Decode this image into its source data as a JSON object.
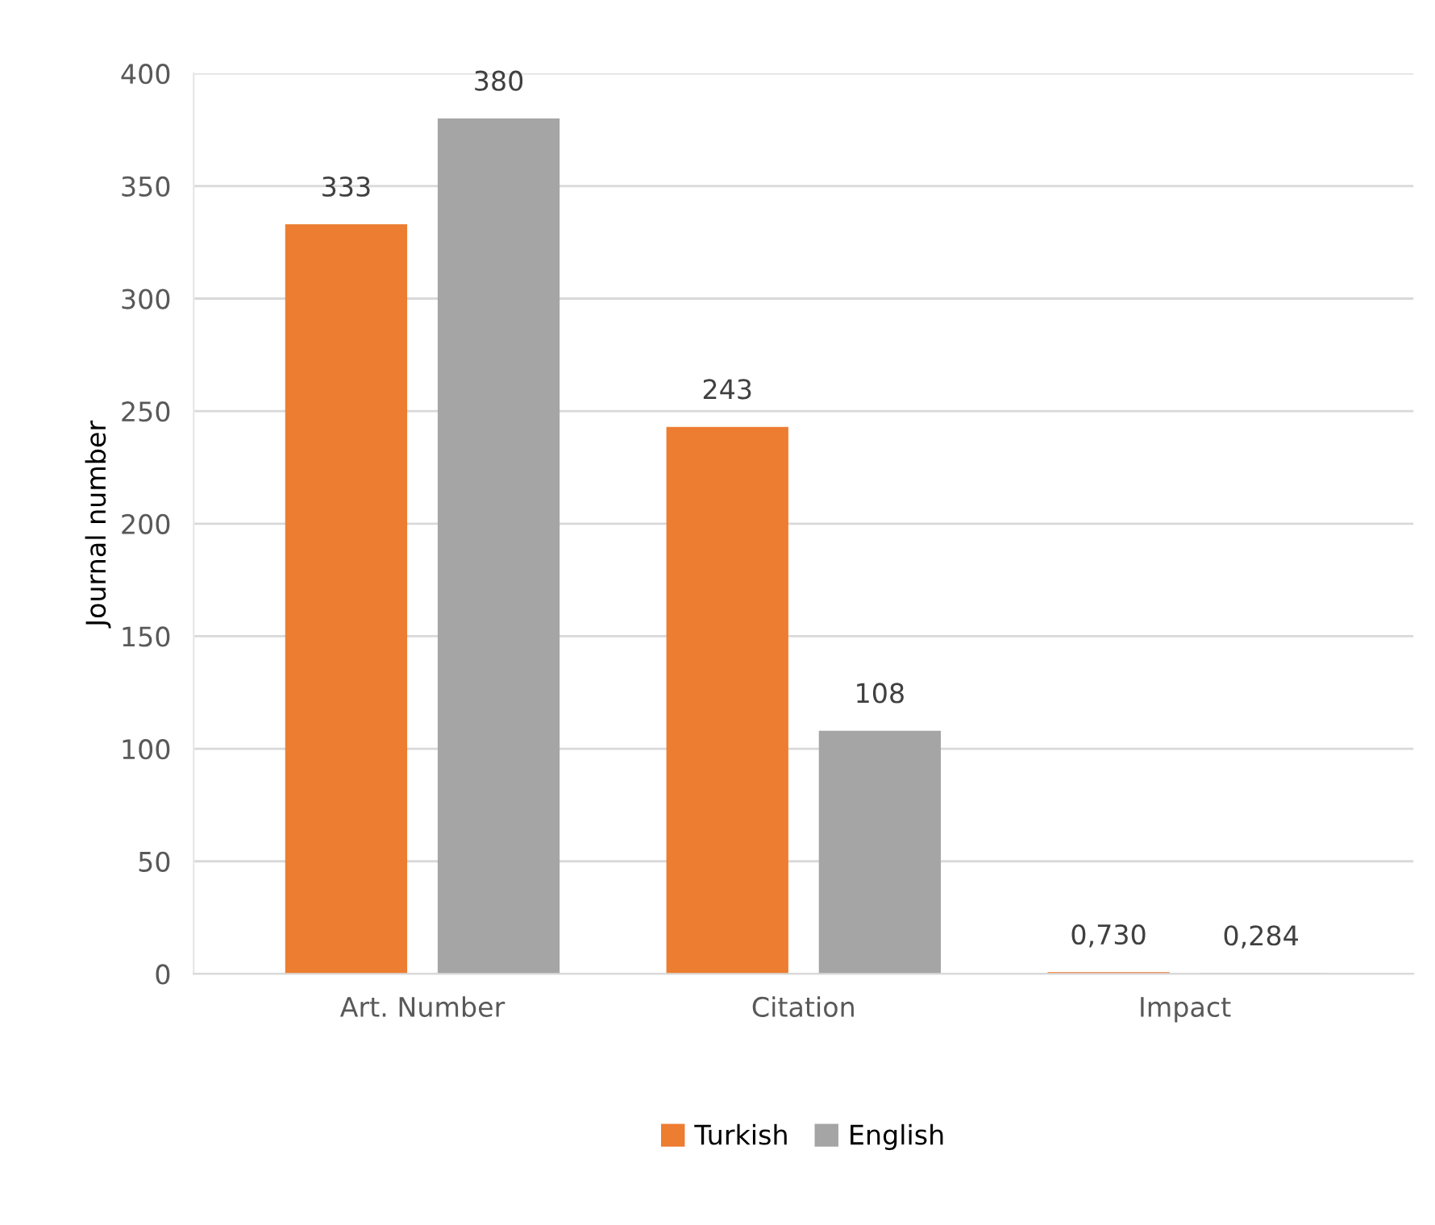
{
  "chart_data": {
    "type": "bar",
    "ylabel": "Journal number",
    "categories": [
      "Art. Number",
      "Citation",
      "Impact"
    ],
    "series": [
      {
        "name": "Turkish",
        "color": "#ed7d31",
        "values": [
          333,
          243,
          0.73
        ],
        "value_labels": [
          "333",
          "243",
          "0,730"
        ]
      },
      {
        "name": "English",
        "color": "#a5a5a5",
        "values": [
          380,
          108,
          0.284
        ],
        "value_labels": [
          "380",
          "108",
          "0,284"
        ]
      }
    ],
    "ylim": [
      0,
      400
    ],
    "yticks": [
      0,
      50,
      100,
      150,
      200,
      250,
      300,
      350,
      400
    ],
    "grid": "y",
    "legend": "bottom"
  }
}
